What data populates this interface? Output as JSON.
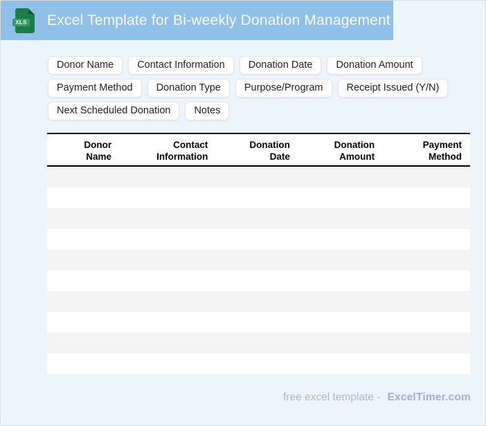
{
  "header": {
    "title": "Excel Template for Bi-weekly Donation Management",
    "file_icon_label": "XLS"
  },
  "tags": {
    "rows": [
      [
        "Donor Name",
        "Contact Information",
        "Donation Date",
        "Donation Amount"
      ],
      [
        "Payment Method",
        "Donation Type",
        "Purpose/Program",
        "Receipt Issued (Y/N)"
      ],
      [
        "Next Scheduled Donation",
        "Notes"
      ]
    ]
  },
  "table": {
    "columns": [
      {
        "line1": "Donor",
        "line2": "Name"
      },
      {
        "line1": "Contact",
        "line2": "Information"
      },
      {
        "line1": "Donation",
        "line2": "Date"
      },
      {
        "line1": "Donation",
        "line2": "Amount"
      },
      {
        "line1": "Payment",
        "line2": "Method"
      }
    ],
    "empty_row_count": 10
  },
  "footer": {
    "text": "free excel template -",
    "brand": "ExcelTimer.com"
  },
  "colors": {
    "header_bg": "#8fc0ea",
    "page_bg": "#edf5fc",
    "stripe_gray": "#f4f4f5",
    "chip_border": "#e2e5e9",
    "chip_text": "#202124",
    "footer_text": "#a9b7db",
    "footer_brand": "#9fafd9",
    "icon_green": "#1a7e46",
    "icon_fold": "#0e5a30",
    "icon_badge": "#359a5f"
  }
}
